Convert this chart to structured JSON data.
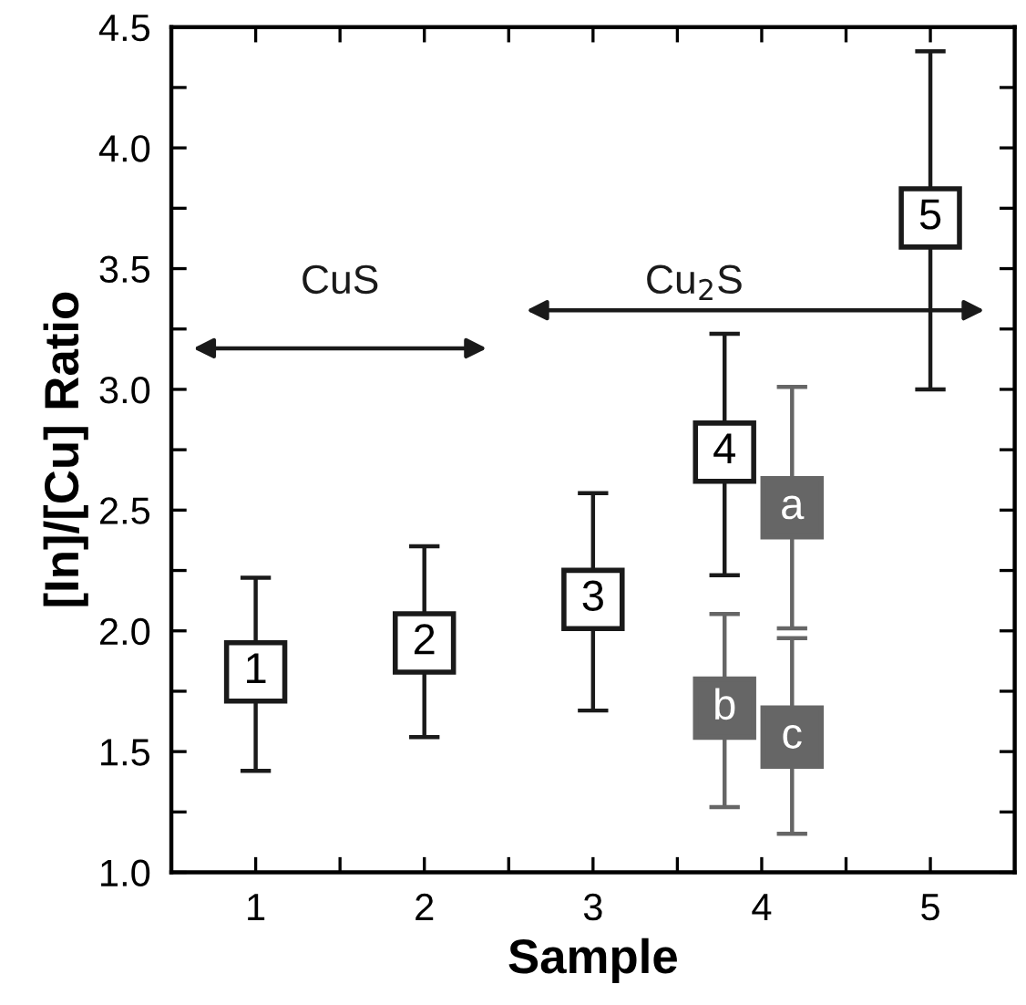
{
  "chart_data": {
    "type": "scatter",
    "xlabel": "Sample",
    "ylabel": "[In]/[Cu] Ratio",
    "xlim": [
      0.5,
      5.5
    ],
    "xticks": [
      {
        "value": 1,
        "label": "1"
      },
      {
        "value": 1.5,
        "label": null
      },
      {
        "value": 2,
        "label": "2"
      },
      {
        "value": 2.5,
        "label": null
      },
      {
        "value": 3,
        "label": "3"
      },
      {
        "value": 3.5,
        "label": null
      },
      {
        "value": 4,
        "label": "4"
      },
      {
        "value": 4.5,
        "label": null
      },
      {
        "value": 5,
        "label": "5"
      }
    ],
    "ylim": [
      1.0,
      4.5
    ],
    "yticks": [
      {
        "value": 1.0,
        "label": "1.0"
      },
      {
        "value": 1.25,
        "label": null
      },
      {
        "value": 1.5,
        "label": "1.5"
      },
      {
        "value": 1.75,
        "label": null
      },
      {
        "value": 2.0,
        "label": "2.0"
      },
      {
        "value": 2.25,
        "label": null
      },
      {
        "value": 2.5,
        "label": "2.5"
      },
      {
        "value": 2.75,
        "label": null
      },
      {
        "value": 3.0,
        "label": "3.0"
      },
      {
        "value": 3.25,
        "label": null
      },
      {
        "value": 3.5,
        "label": "3.5"
      },
      {
        "value": 3.75,
        "label": null
      },
      {
        "value": 4.0,
        "label": "4.0"
      },
      {
        "value": 4.25,
        "label": null
      },
      {
        "value": 4.5,
        "label": "4.5"
      }
    ],
    "marker": "square",
    "grid": false,
    "legend": false,
    "series": [
      {
        "color": "#1a1a1a",
        "x": [
          1,
          2,
          3,
          3.78,
          5
        ],
        "values": [
          1.83,
          1.95,
          2.13,
          2.74,
          3.71
        ],
        "errors": [
          [
            1.42,
            2.22
          ],
          [
            1.56,
            2.35
          ],
          [
            1.67,
            2.57
          ],
          [
            2.23,
            3.23
          ],
          [
            3.0,
            4.4
          ]
        ]
      },
      {
        "color": "#666666",
        "x": [
          4.18,
          3.78,
          4.18
        ],
        "values": [
          2.51,
          1.68,
          1.56
        ],
        "errors": [
          [
            2.01,
            3.01
          ],
          [
            1.27,
            2.07
          ],
          [
            1.16,
            1.97
          ]
        ]
      }
    ],
    "annotations": [
      {
        "text": "1",
        "x": 1,
        "y": 1.83
      },
      {
        "text": "2",
        "x": 2,
        "y": 1.95
      },
      {
        "text": "3",
        "x": 3,
        "y": 2.13
      },
      {
        "text": "4",
        "x": 3.78,
        "y": 2.74
      },
      {
        "text": "5",
        "x": 5,
        "y": 3.71
      },
      {
        "text": "a",
        "x": 4.18,
        "y": 2.51
      },
      {
        "text": "b",
        "x": 3.78,
        "y": 1.68
      },
      {
        "text": "c",
        "x": 4.18,
        "y": 1.56
      },
      "CuS",
      "Cu$_{2}$S"
    ]
  }
}
